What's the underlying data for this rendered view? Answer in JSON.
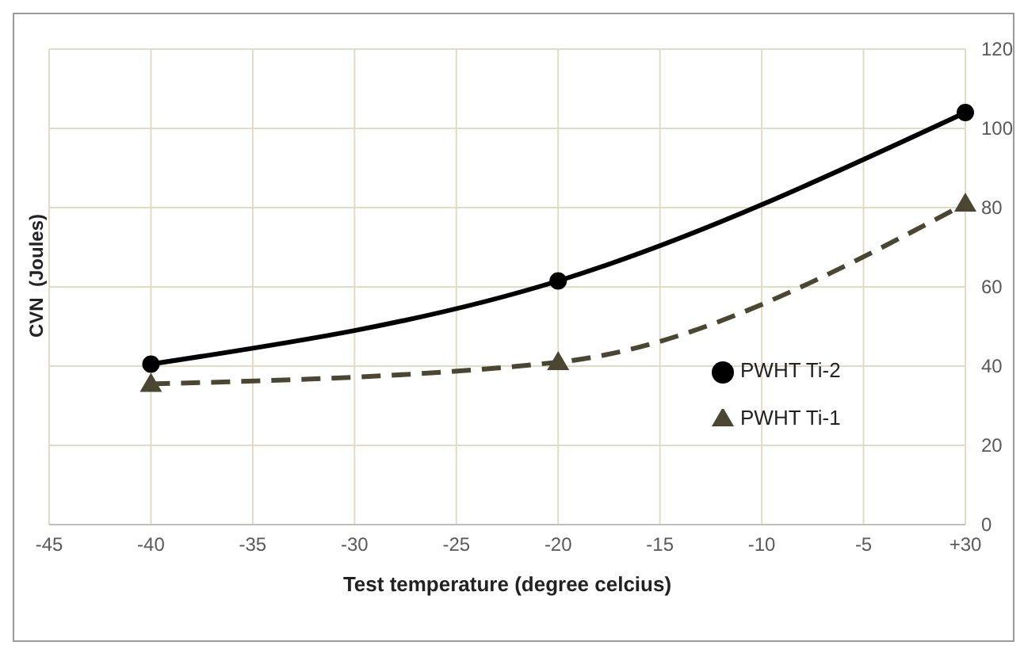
{
  "chart_data": {
    "type": "line",
    "xlabel": "Test temperature (degree celcius)",
    "ylabel": "CVN  (Joules)",
    "categories": [
      "-45",
      "-40",
      "-35",
      "-30",
      "-25",
      "-20",
      "-15",
      "-10",
      "-5",
      "+30"
    ],
    "ylim": [
      0,
      120
    ],
    "yticks": [
      0,
      20,
      40,
      60,
      80,
      100,
      120
    ],
    "grid": true,
    "legend": "right",
    "series": [
      {
        "name": "PWHT Ti-2",
        "color": "#000000",
        "marker": "circle",
        "line_style": "solid",
        "values": [
          null,
          40.5,
          null,
          null,
          null,
          61.5,
          null,
          null,
          null,
          104
        ]
      },
      {
        "name": "PWHT Ti-1",
        "color": "#4a4632",
        "marker": "triangle",
        "line_style": "dashed",
        "values": [
          null,
          35.5,
          null,
          null,
          null,
          41,
          null,
          null,
          null,
          81
        ]
      }
    ]
  }
}
